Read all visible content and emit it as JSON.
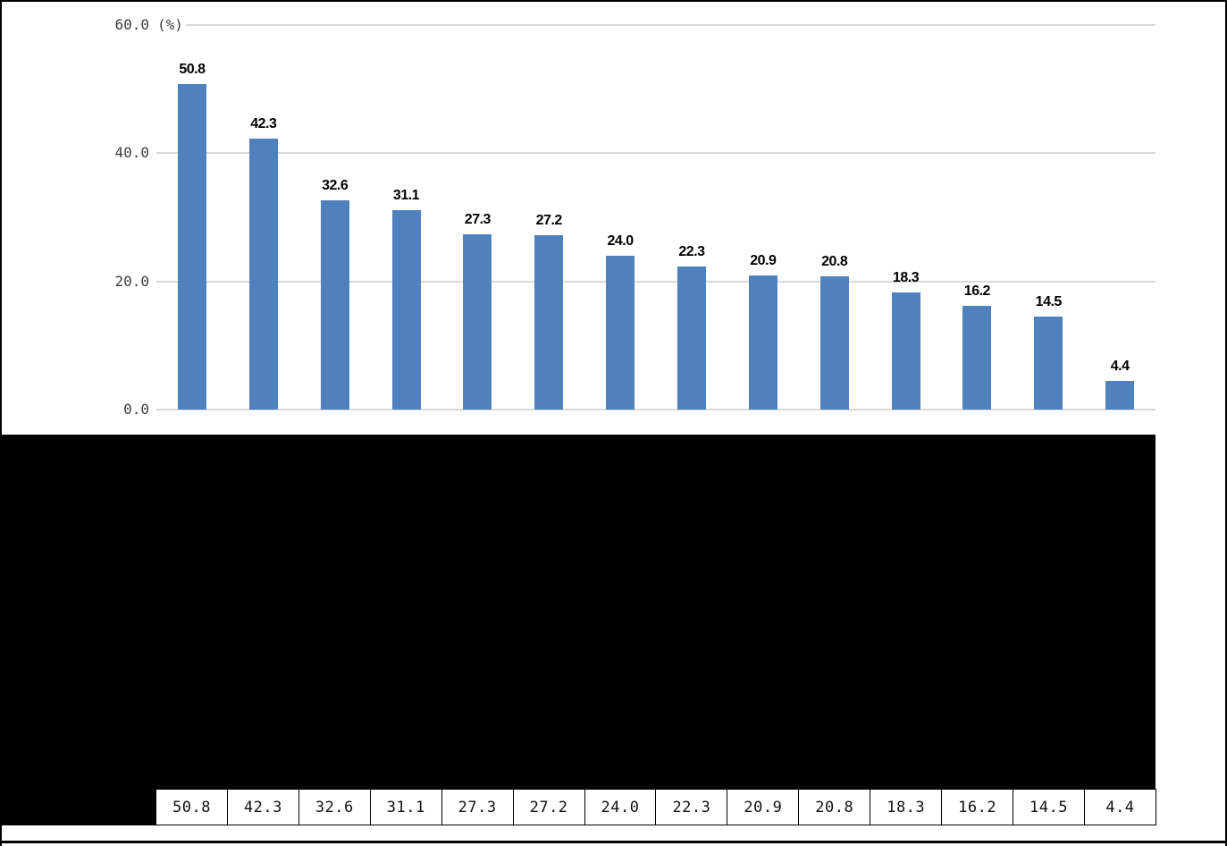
{
  "chart": {
    "unit_label": "(%)",
    "bar_color": "#4F81BD",
    "gridline_color": "#D9D9D9"
  },
  "chart_data": {
    "type": "bar",
    "title": "",
    "xlabel": "",
    "ylabel": "(%)",
    "ylim": [
      0,
      60
    ],
    "grid": true,
    "legend": false,
    "categories_hidden": true,
    "values": [
      50.8,
      42.3,
      32.6,
      31.1,
      27.3,
      27.2,
      24.0,
      22.3,
      20.9,
      20.8,
      18.3,
      16.2,
      14.5,
      4.4
    ],
    "value_labels": [
      "50.8",
      "42.3",
      "32.6",
      "31.1",
      "27.3",
      "27.2",
      "24.0",
      "22.3",
      "20.9",
      "20.8",
      "18.3",
      "16.2",
      "14.5",
      "4.4"
    ],
    "yticks": [
      {
        "value": 60,
        "label": "60.0"
      },
      {
        "value": 40,
        "label": "40.0"
      },
      {
        "value": 20,
        "label": "20.0"
      },
      {
        "value": 0,
        "label": "0.0"
      }
    ]
  },
  "table": {
    "values": [
      "50.8",
      "42.3",
      "32.6",
      "31.1",
      "27.3",
      "27.2",
      "24.0",
      "22.3",
      "20.9",
      "20.8",
      "18.3",
      "16.2",
      "14.5",
      "4.4"
    ]
  }
}
